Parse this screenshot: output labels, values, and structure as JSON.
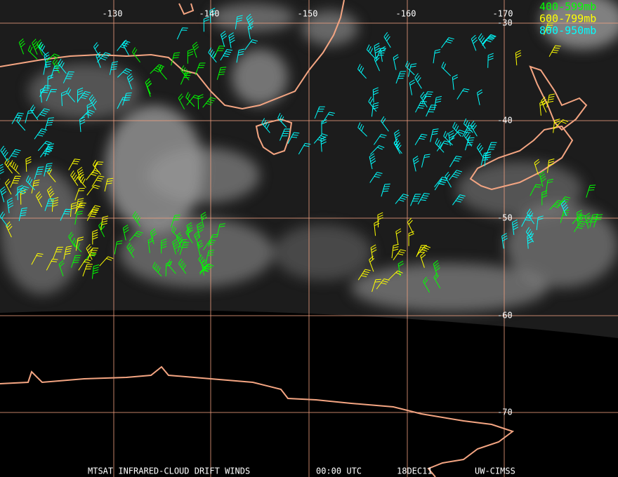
{
  "map": {
    "longitude_labels": [
      "-130",
      "-140",
      "-150",
      "-160",
      "-170"
    ],
    "latitude_labels": [
      "-30",
      "-40",
      "-50",
      "-60",
      "-70"
    ]
  },
  "legend": [
    "400-599mb",
    "600-799mb",
    "800-950mb"
  ],
  "footer": [
    "MTSAT INFRARED-CLOUD DRIFT WINDS",
    "00:00 UTC",
    "18DEC11",
    "UW-CIMSS"
  ]
}
